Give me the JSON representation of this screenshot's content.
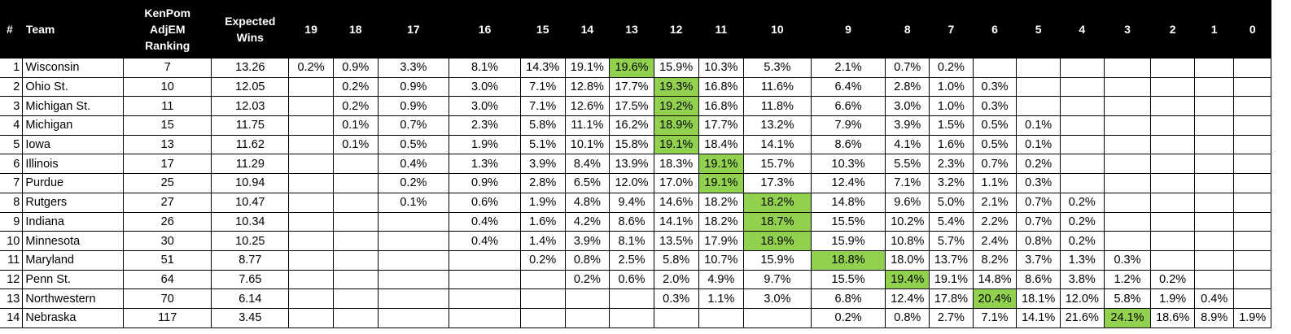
{
  "headers": {
    "num": "#",
    "team": "Team",
    "ranking_lines": [
      "KenPom",
      "AdjEM",
      "Ranking"
    ],
    "expected_lines": [
      "Expected",
      "Wins"
    ],
    "wins": [
      "19",
      "18",
      "17",
      "16",
      "15",
      "14",
      "13",
      "12",
      "11",
      "10",
      "9",
      "8",
      "7",
      "6",
      "5",
      "4",
      "3",
      "2",
      "1",
      "0"
    ]
  },
  "colors": {
    "header_bg": "#000000",
    "highlight": "#92d050"
  },
  "rows": [
    {
      "num": "1",
      "team": "Wisconsin",
      "ranking": "7",
      "expected": "13.26",
      "cells": [
        "0.2%",
        "0.9%",
        "3.3%",
        "8.1%",
        "14.3%",
        "19.1%",
        "19.6%",
        "15.9%",
        "10.3%",
        "5.3%",
        "2.1%",
        "0.7%",
        "0.2%",
        "",
        "",
        "",
        "",
        "",
        "",
        ""
      ],
      "highlight": 6
    },
    {
      "num": "2",
      "team": "Ohio St.",
      "ranking": "10",
      "expected": "12.05",
      "cells": [
        "",
        "0.2%",
        "0.9%",
        "3.0%",
        "7.1%",
        "12.8%",
        "17.7%",
        "19.3%",
        "16.8%",
        "11.6%",
        "6.4%",
        "2.8%",
        "1.0%",
        "0.3%",
        "",
        "",
        "",
        "",
        "",
        ""
      ],
      "highlight": 7
    },
    {
      "num": "3",
      "team": "Michigan St.",
      "ranking": "11",
      "expected": "12.03",
      "cells": [
        "",
        "0.2%",
        "0.9%",
        "3.0%",
        "7.1%",
        "12.6%",
        "17.5%",
        "19.2%",
        "16.8%",
        "11.8%",
        "6.6%",
        "3.0%",
        "1.0%",
        "0.3%",
        "",
        "",
        "",
        "",
        "",
        ""
      ],
      "highlight": 7
    },
    {
      "num": "4",
      "team": "Michigan",
      "ranking": "15",
      "expected": "11.75",
      "cells": [
        "",
        "0.1%",
        "0.7%",
        "2.3%",
        "5.8%",
        "11.1%",
        "16.2%",
        "18.9%",
        "17.7%",
        "13.2%",
        "7.9%",
        "3.9%",
        "1.5%",
        "0.5%",
        "0.1%",
        "",
        "",
        "",
        "",
        ""
      ],
      "highlight": 7
    },
    {
      "num": "5",
      "team": "Iowa",
      "ranking": "13",
      "expected": "11.62",
      "cells": [
        "",
        "0.1%",
        "0.5%",
        "1.9%",
        "5.1%",
        "10.1%",
        "15.8%",
        "19.1%",
        "18.4%",
        "14.1%",
        "8.6%",
        "4.1%",
        "1.6%",
        "0.5%",
        "0.1%",
        "",
        "",
        "",
        "",
        ""
      ],
      "highlight": 7
    },
    {
      "num": "6",
      "team": "Illinois",
      "ranking": "17",
      "expected": "11.29",
      "cells": [
        "",
        "",
        "0.4%",
        "1.3%",
        "3.9%",
        "8.4%",
        "13.9%",
        "18.3%",
        "19.1%",
        "15.7%",
        "10.3%",
        "5.5%",
        "2.3%",
        "0.7%",
        "0.2%",
        "",
        "",
        "",
        "",
        ""
      ],
      "highlight": 8
    },
    {
      "num": "7",
      "team": "Purdue",
      "ranking": "25",
      "expected": "10.94",
      "cells": [
        "",
        "",
        "0.2%",
        "0.9%",
        "2.8%",
        "6.5%",
        "12.0%",
        "17.0%",
        "19.1%",
        "17.3%",
        "12.4%",
        "7.1%",
        "3.2%",
        "1.1%",
        "0.3%",
        "",
        "",
        "",
        "",
        ""
      ],
      "highlight": 8
    },
    {
      "num": "8",
      "team": "Rutgers",
      "ranking": "27",
      "expected": "10.47",
      "cells": [
        "",
        "",
        "0.1%",
        "0.6%",
        "1.9%",
        "4.8%",
        "9.4%",
        "14.6%",
        "18.2%",
        "18.2%",
        "14.8%",
        "9.6%",
        "5.0%",
        "2.1%",
        "0.7%",
        "0.2%",
        "",
        "",
        "",
        ""
      ],
      "highlight": 9
    },
    {
      "num": "9",
      "team": "Indiana",
      "ranking": "26",
      "expected": "10.34",
      "cells": [
        "",
        "",
        "",
        "0.4%",
        "1.6%",
        "4.2%",
        "8.6%",
        "14.1%",
        "18.2%",
        "18.7%",
        "15.5%",
        "10.2%",
        "5.4%",
        "2.2%",
        "0.7%",
        "0.2%",
        "",
        "",
        "",
        ""
      ],
      "highlight": 9
    },
    {
      "num": "10",
      "team": "Minnesota",
      "ranking": "30",
      "expected": "10.25",
      "cells": [
        "",
        "",
        "",
        "0.4%",
        "1.4%",
        "3.9%",
        "8.1%",
        "13.5%",
        "17.9%",
        "18.9%",
        "15.9%",
        "10.8%",
        "5.7%",
        "2.4%",
        "0.8%",
        "0.2%",
        "",
        "",
        "",
        ""
      ],
      "highlight": 9
    },
    {
      "num": "11",
      "team": "Maryland",
      "ranking": "51",
      "expected": "8.77",
      "cells": [
        "",
        "",
        "",
        "",
        "0.2%",
        "0.8%",
        "2.5%",
        "5.8%",
        "10.7%",
        "15.9%",
        "18.8%",
        "18.0%",
        "13.7%",
        "8.2%",
        "3.7%",
        "1.3%",
        "0.3%",
        "",
        "",
        ""
      ],
      "highlight": 10
    },
    {
      "num": "12",
      "team": "Penn St.",
      "ranking": "64",
      "expected": "7.65",
      "cells": [
        "",
        "",
        "",
        "",
        "",
        "0.2%",
        "0.6%",
        "2.0%",
        "4.9%",
        "9.7%",
        "15.5%",
        "19.4%",
        "19.1%",
        "14.8%",
        "8.6%",
        "3.8%",
        "1.2%",
        "0.2%",
        "",
        ""
      ],
      "highlight": 11
    },
    {
      "num": "13",
      "team": "Northwestern",
      "ranking": "70",
      "expected": "6.14",
      "cells": [
        "",
        "",
        "",
        "",
        "",
        "",
        "",
        "0.3%",
        "1.1%",
        "3.0%",
        "6.8%",
        "12.4%",
        "17.8%",
        "20.4%",
        "18.1%",
        "12.0%",
        "5.8%",
        "1.9%",
        "0.4%",
        ""
      ],
      "highlight": 13
    },
    {
      "num": "14",
      "team": "Nebraska",
      "ranking": "117",
      "expected": "3.45",
      "cells": [
        "",
        "",
        "",
        "",
        "",
        "",
        "",
        "",
        "",
        "",
        "0.2%",
        "0.8%",
        "2.7%",
        "7.1%",
        "14.1%",
        "21.6%",
        "24.1%",
        "18.6%",
        "8.9%",
        "1.9%"
      ],
      "highlight": 16
    }
  ]
}
